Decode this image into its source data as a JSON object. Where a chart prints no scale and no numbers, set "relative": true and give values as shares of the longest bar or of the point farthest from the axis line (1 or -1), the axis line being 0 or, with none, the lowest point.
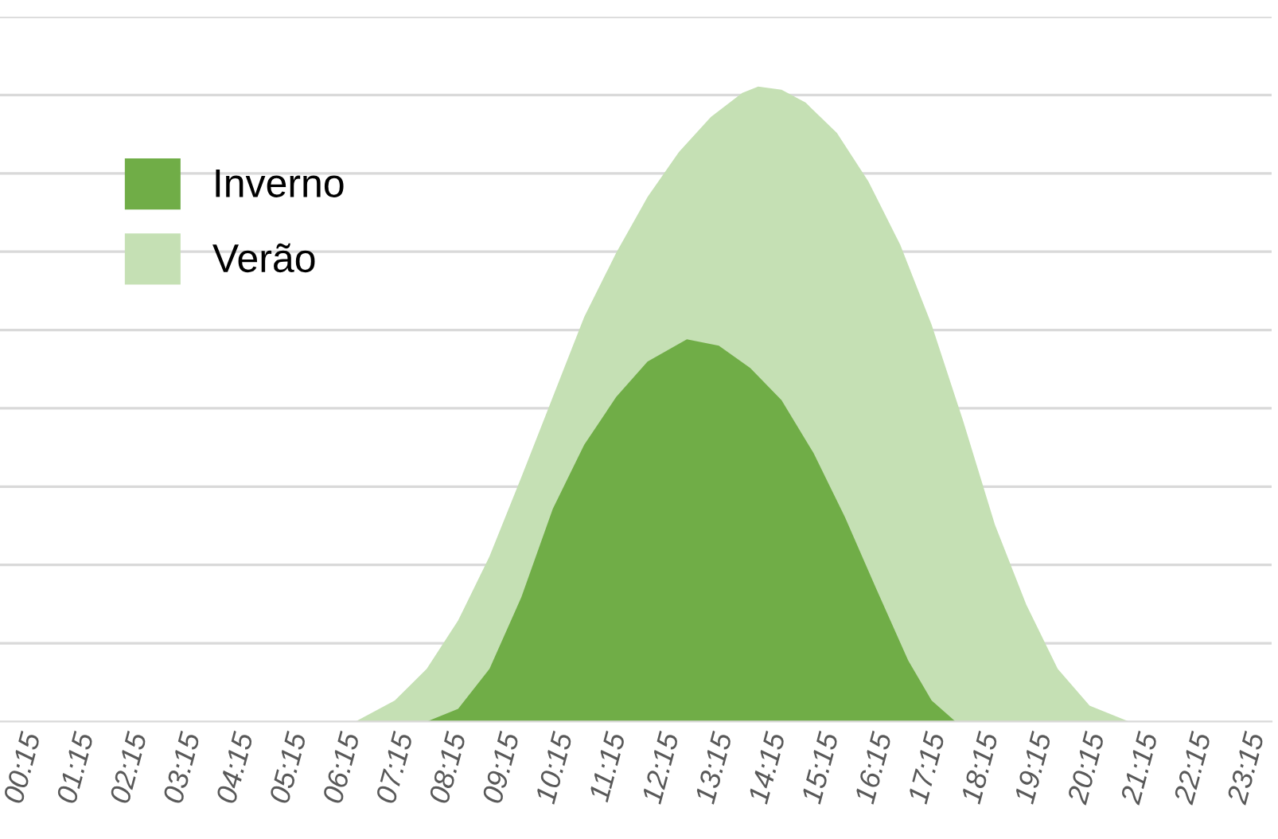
{
  "chart_data": {
    "type": "area",
    "relative": true,
    "grid": "y",
    "legend": "top left",
    "xticks": [
      {
        "value": 0.25,
        "label": "00:15"
      },
      {
        "value": 1.25,
        "label": "01:15"
      },
      {
        "value": 2.25,
        "label": "02:15"
      },
      {
        "value": 3.25,
        "label": "03:15"
      },
      {
        "value": 4.25,
        "label": "04:15"
      },
      {
        "value": 5.25,
        "label": "05:15"
      },
      {
        "value": 6.25,
        "label": "06:15"
      },
      {
        "value": 7.25,
        "label": "07:15"
      },
      {
        "value": 8.25,
        "label": "08:15"
      },
      {
        "value": 9.25,
        "label": "09:15"
      },
      {
        "value": 10.25,
        "label": "10:15"
      },
      {
        "value": 11.25,
        "label": "11:15"
      },
      {
        "value": 12.25,
        "label": "12:15"
      },
      {
        "value": 13.25,
        "label": "13:15"
      },
      {
        "value": 14.25,
        "label": "14:15"
      },
      {
        "value": 15.25,
        "label": "15:15"
      },
      {
        "value": 16.25,
        "label": "16:15"
      },
      {
        "value": 17.25,
        "label": "17:15"
      },
      {
        "value": 18.25,
        "label": "18:15"
      },
      {
        "value": 19.25,
        "label": "19:15"
      },
      {
        "value": 20.25,
        "label": "20:15"
      },
      {
        "value": 21.25,
        "label": "21:15"
      },
      {
        "value": 22.25,
        "label": "22:15"
      },
      {
        "value": 23.25,
        "label": "23:15"
      }
    ],
    "xlim": [
      -0.2,
      23.7
    ],
    "series": [
      {
        "name": "Verão",
        "color": "#c5e0b4",
        "x": [
          0.25,
          6.48,
          7.22,
          7.82,
          8.41,
          9.0,
          9.6,
          10.19,
          10.78,
          11.38,
          11.97,
          12.56,
          13.16,
          13.75,
          14.05,
          14.49,
          14.94,
          15.53,
          16.12,
          16.72,
          17.31,
          17.9,
          18.5,
          19.09,
          19.68,
          20.28,
          21.02,
          23.25
        ],
        "values": [
          0,
          0,
          0.033,
          0.083,
          0.159,
          0.26,
          0.385,
          0.511,
          0.637,
          0.738,
          0.826,
          0.897,
          0.952,
          0.99,
          1,
          0.995,
          0.975,
          0.927,
          0.851,
          0.751,
          0.625,
          0.474,
          0.31,
          0.184,
          0.083,
          0.025,
          0,
          0
        ]
      },
      {
        "name": "Inverno",
        "color": "#70ad47",
        "x": [
          0.25,
          7.82,
          8.41,
          9.0,
          9.6,
          10.19,
          10.78,
          11.38,
          11.97,
          12.71,
          13.31,
          13.9,
          14.49,
          15.09,
          15.68,
          16.27,
          16.87,
          17.31,
          17.76,
          23.25
        ],
        "values": [
          0,
          0,
          0.02,
          0.083,
          0.196,
          0.335,
          0.436,
          0.511,
          0.567,
          0.602,
          0.592,
          0.557,
          0.506,
          0.423,
          0.322,
          0.209,
          0.096,
          0.033,
          0,
          0
        ]
      }
    ]
  }
}
